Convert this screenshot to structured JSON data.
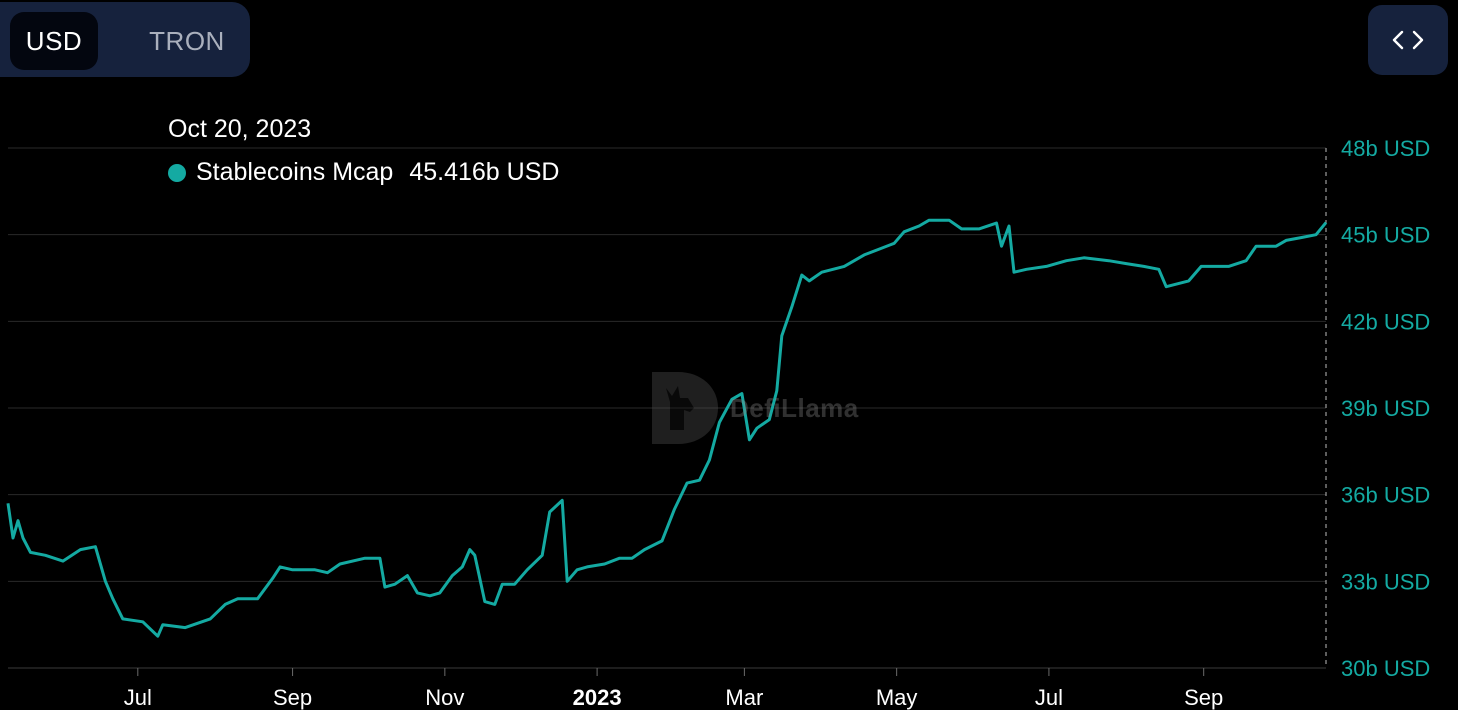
{
  "toggle": {
    "options": [
      "USD",
      "TRON"
    ],
    "selected": "USD"
  },
  "embed_button": {
    "icon": "code-brackets-icon"
  },
  "tooltip": {
    "date": "Oct 20, 2023",
    "series_name": "Stablecoins Mcap",
    "value": "45.416b USD",
    "color": "#14aaa2"
  },
  "watermark": {
    "text": "DefiLlama",
    "icon": "llama-logo-icon"
  },
  "colors": {
    "background": "#000000",
    "line": "#14aaa2",
    "axis_text": "#14aaa2",
    "grid": "#2a2a2a",
    "panel": "#16223d"
  },
  "chart_data": {
    "type": "line",
    "title": "",
    "xlabel": "",
    "ylabel": "",
    "ylim": [
      30,
      48
    ],
    "y_ticks": [
      {
        "value": 48,
        "label": "48b USD"
      },
      {
        "value": 45,
        "label": "45b USD"
      },
      {
        "value": 42,
        "label": "42b USD"
      },
      {
        "value": 39,
        "label": "39b USD"
      },
      {
        "value": 36,
        "label": "36b USD"
      },
      {
        "value": 33,
        "label": "33b USD"
      },
      {
        "value": 30,
        "label": "30b USD"
      }
    ],
    "xlim": [
      "2022-05-10",
      "2023-10-20"
    ],
    "x_ticks": [
      {
        "date": "2022-07-01",
        "label": "Jul",
        "bold": false
      },
      {
        "date": "2022-09-01",
        "label": "Sep",
        "bold": false
      },
      {
        "date": "2022-11-01",
        "label": "Nov",
        "bold": false
      },
      {
        "date": "2023-01-01",
        "label": "2023",
        "bold": true
      },
      {
        "date": "2023-03-01",
        "label": "Mar",
        "bold": false
      },
      {
        "date": "2023-05-01",
        "label": "May",
        "bold": false
      },
      {
        "date": "2023-07-01",
        "label": "Jul",
        "bold": false
      },
      {
        "date": "2023-09-01",
        "label": "Sep",
        "bold": false
      }
    ],
    "grid": true,
    "series": [
      {
        "name": "Stablecoins Mcap",
        "unit": "b USD",
        "points": [
          [
            "2022-05-10",
            35.7
          ],
          [
            "2022-05-12",
            34.5
          ],
          [
            "2022-05-14",
            35.1
          ],
          [
            "2022-05-16",
            34.5
          ],
          [
            "2022-05-19",
            34.0
          ],
          [
            "2022-05-25",
            33.9
          ],
          [
            "2022-06-01",
            33.7
          ],
          [
            "2022-06-08",
            34.1
          ],
          [
            "2022-06-14",
            34.2
          ],
          [
            "2022-06-18",
            33.0
          ],
          [
            "2022-06-21",
            32.4
          ],
          [
            "2022-06-25",
            31.7
          ],
          [
            "2022-07-03",
            31.6
          ],
          [
            "2022-07-09",
            31.1
          ],
          [
            "2022-07-11",
            31.5
          ],
          [
            "2022-07-20",
            31.4
          ],
          [
            "2022-07-30",
            31.7
          ],
          [
            "2022-08-05",
            32.2
          ],
          [
            "2022-08-10",
            32.4
          ],
          [
            "2022-08-18",
            32.4
          ],
          [
            "2022-08-24",
            33.1
          ],
          [
            "2022-08-27",
            33.5
          ],
          [
            "2022-09-01",
            33.4
          ],
          [
            "2022-09-10",
            33.4
          ],
          [
            "2022-09-15",
            33.3
          ],
          [
            "2022-09-20",
            33.6
          ],
          [
            "2022-09-30",
            33.8
          ],
          [
            "2022-10-06",
            33.8
          ],
          [
            "2022-10-08",
            32.8
          ],
          [
            "2022-10-12",
            32.9
          ],
          [
            "2022-10-17",
            33.2
          ],
          [
            "2022-10-21",
            32.6
          ],
          [
            "2022-10-26",
            32.5
          ],
          [
            "2022-10-30",
            32.6
          ],
          [
            "2022-11-04",
            33.2
          ],
          [
            "2022-11-08",
            33.5
          ],
          [
            "2022-11-11",
            34.1
          ],
          [
            "2022-11-13",
            33.9
          ],
          [
            "2022-11-17",
            32.3
          ],
          [
            "2022-11-21",
            32.2
          ],
          [
            "2022-11-24",
            32.9
          ],
          [
            "2022-11-29",
            32.9
          ],
          [
            "2022-12-04",
            33.4
          ],
          [
            "2022-12-10",
            33.9
          ],
          [
            "2022-12-13",
            35.4
          ],
          [
            "2022-12-18",
            35.8
          ],
          [
            "2022-12-20",
            33.0
          ],
          [
            "2022-12-24",
            33.4
          ],
          [
            "2022-12-28",
            33.5
          ],
          [
            "2023-01-04",
            33.6
          ],
          [
            "2023-01-10",
            33.8
          ],
          [
            "2023-01-15",
            33.8
          ],
          [
            "2023-01-20",
            34.1
          ],
          [
            "2023-01-27",
            34.4
          ],
          [
            "2023-02-01",
            35.5
          ],
          [
            "2023-02-06",
            36.4
          ],
          [
            "2023-02-11",
            36.5
          ],
          [
            "2023-02-15",
            37.2
          ],
          [
            "2023-02-19",
            38.5
          ],
          [
            "2023-02-24",
            39.3
          ],
          [
            "2023-02-28",
            39.5
          ],
          [
            "2023-03-03",
            37.9
          ],
          [
            "2023-03-06",
            38.3
          ],
          [
            "2023-03-11",
            38.6
          ],
          [
            "2023-03-14",
            39.6
          ],
          [
            "2023-03-16",
            41.5
          ],
          [
            "2023-03-20",
            42.5
          ],
          [
            "2023-03-24",
            43.6
          ],
          [
            "2023-03-27",
            43.4
          ],
          [
            "2023-04-01",
            43.7
          ],
          [
            "2023-04-10",
            43.9
          ],
          [
            "2023-04-18",
            44.3
          ],
          [
            "2023-04-24",
            44.5
          ],
          [
            "2023-04-30",
            44.7
          ],
          [
            "2023-05-04",
            45.1
          ],
          [
            "2023-05-10",
            45.3
          ],
          [
            "2023-05-14",
            45.5
          ],
          [
            "2023-05-22",
            45.5
          ],
          [
            "2023-05-27",
            45.2
          ],
          [
            "2023-06-03",
            45.2
          ],
          [
            "2023-06-10",
            45.4
          ],
          [
            "2023-06-12",
            44.6
          ],
          [
            "2023-06-15",
            45.3
          ],
          [
            "2023-06-17",
            43.7
          ],
          [
            "2023-06-22",
            43.8
          ],
          [
            "2023-06-30",
            43.9
          ],
          [
            "2023-07-08",
            44.1
          ],
          [
            "2023-07-15",
            44.2
          ],
          [
            "2023-07-25",
            44.1
          ],
          [
            "2023-08-01",
            44.0
          ],
          [
            "2023-08-08",
            43.9
          ],
          [
            "2023-08-14",
            43.8
          ],
          [
            "2023-08-17",
            43.2
          ],
          [
            "2023-08-26",
            43.4
          ],
          [
            "2023-08-31",
            43.9
          ],
          [
            "2023-09-05",
            43.9
          ],
          [
            "2023-09-11",
            43.9
          ],
          [
            "2023-09-18",
            44.1
          ],
          [
            "2023-09-22",
            44.6
          ],
          [
            "2023-09-30",
            44.6
          ],
          [
            "2023-10-04",
            44.8
          ],
          [
            "2023-10-10",
            44.9
          ],
          [
            "2023-10-16",
            45.0
          ],
          [
            "2023-10-20",
            45.416
          ]
        ]
      }
    ]
  }
}
